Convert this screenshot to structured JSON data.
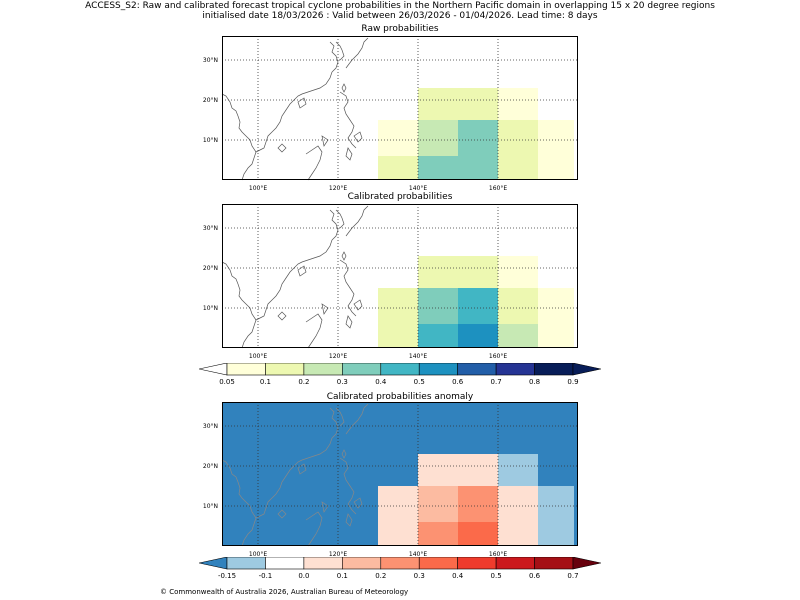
{
  "header": {
    "line1": "ACCESS_S2: Raw and calibrated forecast tropical cyclone probabilities in the Northern Pacific domain in overlapping 15 x 20 degree regions",
    "line2": "initialised date 18/03/2026 :  Valid between 26/03/2026 - 01/04/2026. Lead time: 8 days"
  },
  "panels": {
    "raw": {
      "title": "Raw probabilities"
    },
    "calibrated": {
      "title": "Calibrated probabilities"
    },
    "anomaly": {
      "title": "Calibrated probabilities anomaly"
    }
  },
  "axes": {
    "lon_labels": [
      "100°E",
      "120°E",
      "140°E",
      "160°E"
    ],
    "lat_labels": [
      "30°N",
      "20°N",
      "10°N"
    ]
  },
  "colorbars": {
    "prob": {
      "labels": [
        "0.05",
        "0.1",
        "0.2",
        "0.3",
        "0.4",
        "0.5",
        "0.6",
        "0.7",
        "0.8",
        "0.9"
      ],
      "colors": [
        "#ffffd9",
        "#edf8b1",
        "#c7e9b4",
        "#7fcdbb",
        "#41b6c4",
        "#1d91c0",
        "#225ea8",
        "#253494",
        "#081d58"
      ],
      "under_color": "#ffffff",
      "over_color": "#081d58"
    },
    "anom": {
      "labels": [
        "-0.15",
        "-0.1",
        "0.0",
        "0.1",
        "0.2",
        "0.3",
        "0.4",
        "0.5",
        "0.6",
        "0.7"
      ],
      "colors": [
        "#9ecae1",
        "#ffffff",
        "#fee0d2",
        "#fcbba1",
        "#fc9272",
        "#fb6a4a",
        "#ef3b2c",
        "#cb181d",
        "#a50f15"
      ],
      "under_color": "#3182bd",
      "over_color": "#67000d"
    }
  },
  "grid_values": {
    "raw": [
      {
        "lon": [
          130,
          140
        ],
        "lat": [
          0,
          6
        ],
        "value": 0.1
      },
      {
        "lon": [
          130,
          140
        ],
        "lat": [
          6,
          15
        ],
        "value": 0.05
      },
      {
        "lon": [
          140,
          150
        ],
        "lat": [
          0,
          6
        ],
        "value": 0.3
      },
      {
        "lon": [
          140,
          150
        ],
        "lat": [
          6,
          15
        ],
        "value": 0.2
      },
      {
        "lon": [
          140,
          150
        ],
        "lat": [
          15,
          23
        ],
        "value": 0.1
      },
      {
        "lon": [
          150,
          160
        ],
        "lat": [
          0,
          6
        ],
        "value": 0.3
      },
      {
        "lon": [
          150,
          160
        ],
        "lat": [
          6,
          15
        ],
        "value": 0.3
      },
      {
        "lon": [
          150,
          160
        ],
        "lat": [
          15,
          23
        ],
        "value": 0.1
      },
      {
        "lon": [
          160,
          170
        ],
        "lat": [
          0,
          6
        ],
        "value": 0.1
      },
      {
        "lon": [
          160,
          170
        ],
        "lat": [
          6,
          15
        ],
        "value": 0.1
      },
      {
        "lon": [
          160,
          170
        ],
        "lat": [
          15,
          23
        ],
        "value": 0.05
      },
      {
        "lon": [
          170,
          179
        ],
        "lat": [
          0,
          6
        ],
        "value": 0.05
      },
      {
        "lon": [
          170,
          179
        ],
        "lat": [
          6,
          15
        ],
        "value": 0.05
      }
    ],
    "calibrated": [
      {
        "lon": [
          130,
          140
        ],
        "lat": [
          0,
          6
        ],
        "value": 0.1
      },
      {
        "lon": [
          130,
          140
        ],
        "lat": [
          6,
          15
        ],
        "value": 0.1
      },
      {
        "lon": [
          140,
          150
        ],
        "lat": [
          0,
          6
        ],
        "value": 0.4
      },
      {
        "lon": [
          140,
          150
        ],
        "lat": [
          6,
          15
        ],
        "value": 0.3
      },
      {
        "lon": [
          140,
          150
        ],
        "lat": [
          15,
          23
        ],
        "value": 0.1
      },
      {
        "lon": [
          150,
          160
        ],
        "lat": [
          0,
          6
        ],
        "value": 0.5
      },
      {
        "lon": [
          150,
          160
        ],
        "lat": [
          6,
          15
        ],
        "value": 0.4
      },
      {
        "lon": [
          150,
          160
        ],
        "lat": [
          15,
          23
        ],
        "value": 0.1
      },
      {
        "lon": [
          160,
          170
        ],
        "lat": [
          0,
          6
        ],
        "value": 0.2
      },
      {
        "lon": [
          160,
          170
        ],
        "lat": [
          6,
          15
        ],
        "value": 0.1
      },
      {
        "lon": [
          160,
          170
        ],
        "lat": [
          15,
          23
        ],
        "value": 0.05
      },
      {
        "lon": [
          170,
          179
        ],
        "lat": [
          0,
          6
        ],
        "value": 0.05
      },
      {
        "lon": [
          170,
          179
        ],
        "lat": [
          6,
          15
        ],
        "value": 0.05
      }
    ],
    "anomaly": {
      "background_value": -0.2,
      "cells": [
        {
          "lon": [
            130,
            140
          ],
          "lat": [
            0,
            15
          ],
          "value": 0.0
        },
        {
          "lon": [
            140,
            150
          ],
          "lat": [
            0,
            6
          ],
          "value": 0.2
        },
        {
          "lon": [
            140,
            150
          ],
          "lat": [
            6,
            15
          ],
          "value": 0.1
        },
        {
          "lon": [
            140,
            150
          ],
          "lat": [
            15,
            23
          ],
          "value": 0.0
        },
        {
          "lon": [
            150,
            160
          ],
          "lat": [
            0,
            6
          ],
          "value": 0.3
        },
        {
          "lon": [
            150,
            160
          ],
          "lat": [
            6,
            15
          ],
          "value": 0.2
        },
        {
          "lon": [
            150,
            160
          ],
          "lat": [
            15,
            23
          ],
          "value": 0.0
        },
        {
          "lon": [
            160,
            170
          ],
          "lat": [
            0,
            6
          ],
          "value": 0.05
        },
        {
          "lon": [
            160,
            170
          ],
          "lat": [
            6,
            15
          ],
          "value": 0.0
        },
        {
          "lon": [
            160,
            170
          ],
          "lat": [
            15,
            23
          ],
          "value": -0.15
        },
        {
          "lon": [
            170,
            179
          ],
          "lat": [
            0,
            15
          ],
          "value": -0.15
        }
      ]
    }
  },
  "footer": {
    "copyright": "© Commonwealth of Australia 2026, Australian Bureau of Meteorology"
  }
}
